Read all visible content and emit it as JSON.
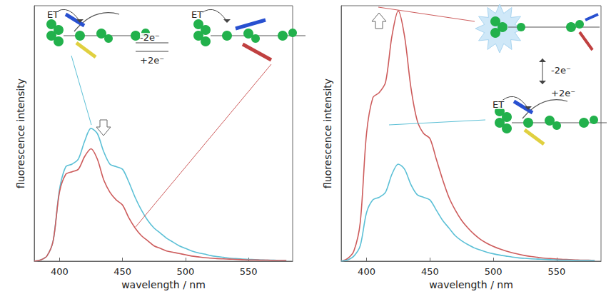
{
  "chart_data": [
    {
      "type": "line",
      "x_label": "wavelength / nm",
      "y_label": "fluorescence intensity",
      "x": [
        380,
        385,
        390,
        395,
        400,
        405,
        410,
        415,
        420,
        425,
        430,
        435,
        440,
        445,
        450,
        455,
        460,
        465,
        470,
        475,
        480,
        485,
        490,
        495,
        500,
        505,
        510,
        515,
        520,
        525,
        530,
        535,
        540,
        545,
        550,
        555,
        560,
        565,
        570,
        575,
        580
      ],
      "series": [
        {
          "color": "#5cc0d6",
          "values": [
            0,
            0.5,
            2,
            8,
            28,
            37,
            38,
            40,
            47,
            52,
            50,
            43,
            38,
            37,
            36,
            31,
            25,
            20,
            16,
            13,
            11,
            9,
            7.5,
            6,
            5,
            4,
            3.3,
            2.8,
            2.2,
            1.8,
            1.5,
            1.2,
            1,
            0.8,
            0.7,
            0.6,
            0.5,
            0.4,
            0.4,
            0.3,
            0.3
          ]
        },
        {
          "color": "#cd5c5c",
          "values": [
            0,
            0.5,
            2,
            8,
            27,
            34,
            35,
            36,
            41,
            44,
            40,
            32,
            27,
            24,
            22,
            17,
            13,
            10,
            8,
            6,
            5,
            4,
            3.5,
            3,
            2.5,
            2,
            1.7,
            1.4,
            1.2,
            1,
            0.9,
            0.8,
            0.7,
            0.6,
            0.5,
            0.5,
            0.4,
            0.4,
            0.3,
            0.3,
            0.3
          ]
        }
      ],
      "xlim": [
        380,
        585
      ],
      "xticks": [
        400,
        450,
        500,
        550
      ],
      "ylim": [
        0,
        100
      ],
      "yticks": [],
      "tick_labels": "x",
      "grid": false,
      "annotations": [
        "ET",
        "-2e⁻",
        "+2e⁻",
        "ET"
      ]
    },
    {
      "type": "line",
      "x_label": "wavelength / nm",
      "y_label": "fluorescence intensity",
      "x": [
        380,
        385,
        390,
        395,
        400,
        405,
        410,
        415,
        420,
        425,
        430,
        435,
        440,
        445,
        450,
        455,
        460,
        465,
        470,
        475,
        480,
        485,
        490,
        495,
        500,
        505,
        510,
        515,
        520,
        525,
        530,
        535,
        540,
        545,
        550,
        555,
        560,
        565,
        570,
        575,
        580
      ],
      "series": [
        {
          "color": "#cd5c5c",
          "values": [
            0,
            1,
            4,
            15,
            50,
            64,
            66,
            70,
            88,
            98,
            88,
            68,
            55,
            50,
            48,
            40,
            32,
            25,
            20,
            16,
            13,
            10.5,
            8.5,
            7,
            5.8,
            4.8,
            4,
            3.3,
            2.7,
            2.2,
            1.8,
            1.5,
            1.2,
            1,
            0.8,
            0.7,
            0.6,
            0.5,
            0.4,
            0.4,
            0.3
          ]
        },
        {
          "color": "#5cc0d6",
          "values": [
            0,
            0.5,
            2,
            6,
            19,
            24,
            25,
            27,
            34,
            38,
            36,
            30,
            26,
            25,
            24,
            20,
            16,
            13,
            10,
            8,
            6.5,
            5.2,
            4.3,
            3.5,
            2.9,
            2.4,
            2,
            1.6,
            1.3,
            1.1,
            0.9,
            0.8,
            0.7,
            0.6,
            0.5,
            0.4,
            0.4,
            0.3,
            0.3,
            0.3,
            0.2
          ]
        }
      ],
      "xlim": [
        380,
        585
      ],
      "xticks": [
        400,
        450,
        500,
        550
      ],
      "ylim": [
        0,
        100
      ],
      "yticks": [],
      "tick_labels": "x",
      "grid": false,
      "annotations": [
        "-2e⁻",
        "+2e⁻",
        "ET"
      ]
    }
  ]
}
